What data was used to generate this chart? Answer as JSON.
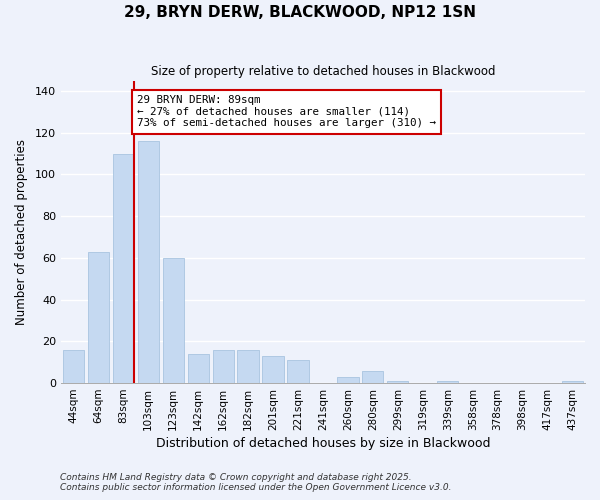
{
  "title": "29, BRYN DERW, BLACKWOOD, NP12 1SN",
  "subtitle": "Size of property relative to detached houses in Blackwood",
  "xlabel": "Distribution of detached houses by size in Blackwood",
  "ylabel": "Number of detached properties",
  "categories": [
    "44sqm",
    "64sqm",
    "83sqm",
    "103sqm",
    "123sqm",
    "142sqm",
    "162sqm",
    "182sqm",
    "201sqm",
    "221sqm",
    "241sqm",
    "260sqm",
    "280sqm",
    "299sqm",
    "319sqm",
    "339sqm",
    "358sqm",
    "378sqm",
    "398sqm",
    "417sqm",
    "437sqm"
  ],
  "values": [
    16,
    63,
    110,
    116,
    60,
    14,
    16,
    16,
    13,
    11,
    0,
    3,
    6,
    1,
    0,
    1,
    0,
    0,
    0,
    0,
    1
  ],
  "bar_color": "#c5d9f1",
  "bar_edge_color": "#a8c4e0",
  "highlight_line_color": "#cc0000",
  "ylim": [
    0,
    145
  ],
  "yticks": [
    0,
    20,
    40,
    60,
    80,
    100,
    120,
    140
  ],
  "annotation_text": "29 BRYN DERW: 89sqm\n← 27% of detached houses are smaller (114)\n73% of semi-detached houses are larger (310) →",
  "annotation_box_color": "#ffffff",
  "annotation_box_edge": "#cc0000",
  "footnote1": "Contains HM Land Registry data © Crown copyright and database right 2025.",
  "footnote2": "Contains public sector information licensed under the Open Government Licence v3.0.",
  "background_color": "#eef2fb",
  "grid_color": "#ffffff"
}
